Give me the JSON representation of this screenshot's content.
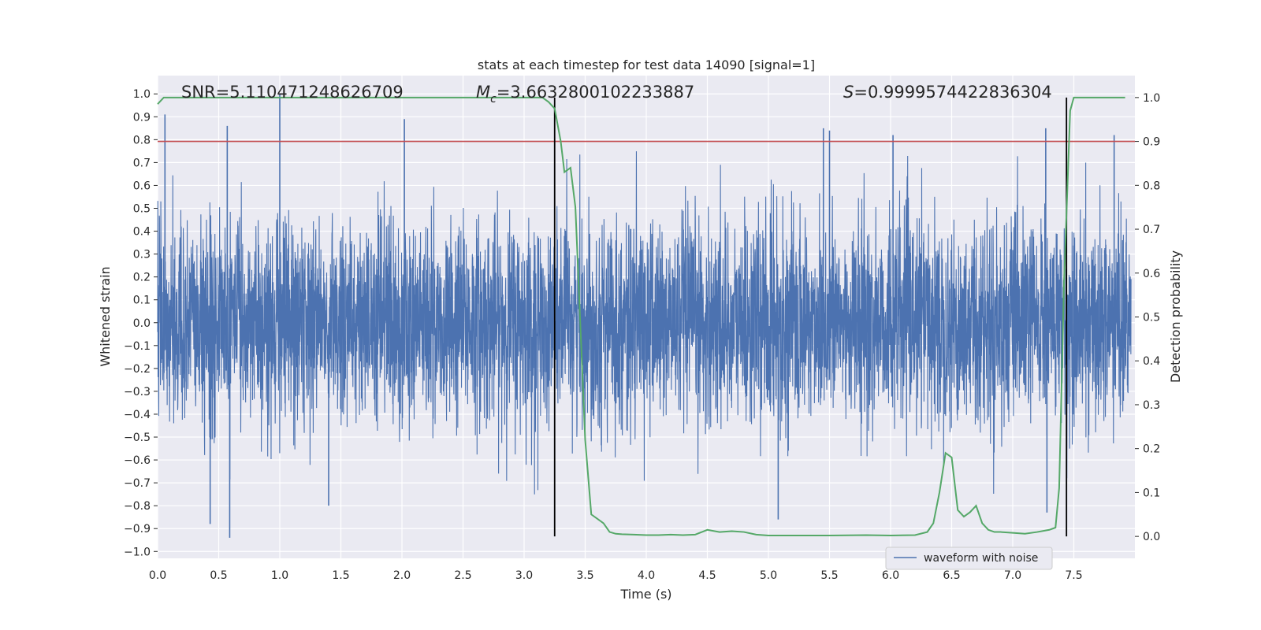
{
  "chart_data": {
    "type": "line",
    "title": "stats at each timestep for test data 14090 [signal=1]",
    "xlabel": "Time (s)",
    "ylabel": "Whitened strain",
    "y2label": "Detection probability",
    "xlim": [
      0.0,
      8.0
    ],
    "ylim": [
      -1.03,
      1.08
    ],
    "y2lim": [
      -0.05,
      1.05
    ],
    "x_ticks": [
      0.0,
      0.5,
      1.0,
      1.5,
      2.0,
      2.5,
      3.0,
      3.5,
      4.0,
      4.5,
      5.0,
      5.5,
      6.0,
      6.5,
      7.0,
      7.5
    ],
    "x_tick_labels": [
      "0.0",
      "0.5",
      "1.0",
      "1.5",
      "2.0",
      "2.5",
      "3.0",
      "3.5",
      "4.0",
      "4.5",
      "5.0",
      "5.5",
      "6.0",
      "6.5",
      "7.0",
      "7.5"
    ],
    "y_ticks": [
      -1.0,
      -0.9,
      -0.8,
      -0.7,
      -0.6,
      -0.5,
      -0.4,
      -0.3,
      -0.2,
      -0.1,
      0.0,
      0.1,
      0.2,
      0.3,
      0.4,
      0.5,
      0.6,
      0.7,
      0.8,
      0.9,
      1.0
    ],
    "y_tick_labels": [
      "−1.0",
      "−0.9",
      "−0.8",
      "−0.7",
      "−0.6",
      "−0.5",
      "−0.4",
      "−0.3",
      "−0.2",
      "−0.1",
      "0.0",
      "0.1",
      "0.2",
      "0.3",
      "0.4",
      "0.5",
      "0.6",
      "0.7",
      "0.8",
      "0.9",
      "1.0"
    ],
    "y2_ticks": [
      0.0,
      0.1,
      0.2,
      0.3,
      0.4,
      0.5,
      0.6,
      0.7,
      0.8,
      0.9,
      1.0
    ],
    "y2_tick_labels": [
      "0.0",
      "0.1",
      "0.2",
      "0.3",
      "0.4",
      "0.5",
      "0.6",
      "0.7",
      "0.8",
      "0.9",
      "1.0"
    ],
    "grid": true,
    "legend_position": "lower-right",
    "annotations": {
      "snr": "SNR=5.110471248626709",
      "mc_symbol": "M",
      "mc_subscript": "c",
      "mc_value": "=3.6632800102233887",
      "s_symbol": "S",
      "s_value": "=0.9999574422836304"
    },
    "vertical_lines_x": [
      3.25,
      7.44
    ],
    "threshold_probability": 0.9,
    "series": [
      {
        "name": "waveform with noise",
        "axis": "left",
        "color": "#4c72b0",
        "style": "noise",
        "amplitude_envelope": 0.6,
        "peaks": [
          {
            "x": 1.0,
            "y": 1.0
          },
          {
            "x": 0.06,
            "y": 0.91
          },
          {
            "x": 0.57,
            "y": 0.86
          },
          {
            "x": 2.02,
            "y": 0.89
          },
          {
            "x": 5.45,
            "y": 0.85
          },
          {
            "x": 5.5,
            "y": 0.84
          },
          {
            "x": 6.02,
            "y": 0.82
          },
          {
            "x": 7.27,
            "y": 0.85
          },
          {
            "x": 7.83,
            "y": 0.82
          },
          {
            "x": 0.59,
            "y": -0.94
          },
          {
            "x": 0.43,
            "y": -0.88
          },
          {
            "x": 1.4,
            "y": -0.8
          },
          {
            "x": 5.08,
            "y": -0.86
          },
          {
            "x": 7.28,
            "y": -0.83
          }
        ]
      },
      {
        "name": "",
        "axis": "right",
        "color": "#55a868",
        "x": [
          0.0,
          0.05,
          0.1,
          0.5,
          1.0,
          1.5,
          2.0,
          2.5,
          3.0,
          3.15,
          3.2,
          3.25,
          3.3,
          3.33,
          3.38,
          3.42,
          3.5,
          3.55,
          3.6,
          3.65,
          3.7,
          3.75,
          3.8,
          3.9,
          4.0,
          4.1,
          4.2,
          4.3,
          4.4,
          4.5,
          4.6,
          4.7,
          4.8,
          4.9,
          5.0,
          5.5,
          5.8,
          6.0,
          6.2,
          6.3,
          6.35,
          6.4,
          6.45,
          6.5,
          6.55,
          6.6,
          6.65,
          6.7,
          6.75,
          6.8,
          6.85,
          6.9,
          7.0,
          7.1,
          7.2,
          7.3,
          7.35,
          7.38,
          7.42,
          7.47,
          7.5,
          7.55,
          8.0
        ],
        "values": [
          0.985,
          1.0,
          1.0,
          1.0,
          1.0,
          1.0,
          1.0,
          1.0,
          1.0,
          1.0,
          0.99,
          0.975,
          0.9,
          0.83,
          0.84,
          0.75,
          0.22,
          0.05,
          0.04,
          0.03,
          0.01,
          0.006,
          0.005,
          0.004,
          0.003,
          0.003,
          0.004,
          0.003,
          0.004,
          0.015,
          0.01,
          0.012,
          0.01,
          0.004,
          0.002,
          0.002,
          0.003,
          0.002,
          0.003,
          0.01,
          0.03,
          0.1,
          0.19,
          0.18,
          0.06,
          0.045,
          0.055,
          0.07,
          0.03,
          0.015,
          0.01,
          0.01,
          0.008,
          0.006,
          0.01,
          0.015,
          0.02,
          0.11,
          0.58,
          0.97,
          1.0,
          1.0,
          1.0
        ]
      }
    ]
  }
}
